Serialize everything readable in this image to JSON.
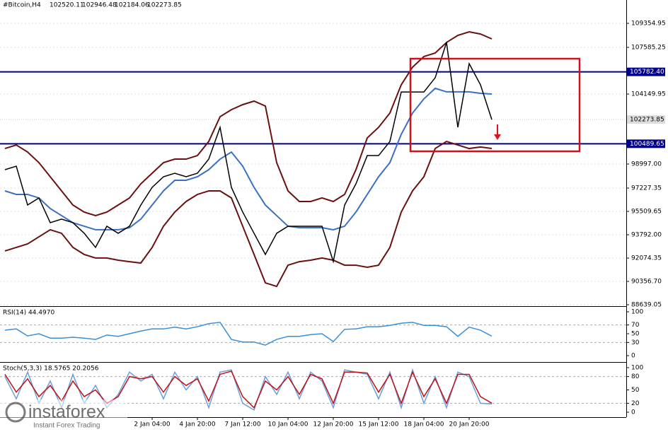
{
  "chart_data": [
    {
      "type": "line",
      "title": "#Bitcoin,H4",
      "ohlc": [
        102520.11,
        102946.48,
        102184.06,
        102273.85
      ],
      "last_price": 102273.85,
      "categories": [
        null,
        null,
        null,
        null,
        null,
        null,
        null,
        null,
        null,
        null,
        null,
        null,
        null,
        "2 Jan 04:00",
        null,
        null,
        null,
        "4 Jan 20:00",
        null,
        null,
        null,
        "7 Jan 12:00",
        null,
        null,
        null,
        "10 Jan 04:00",
        null,
        null,
        null,
        "12 Jan 20:00",
        null,
        null,
        null,
        "15 Jan 12:00",
        null,
        null,
        null,
        "18 Jan 04:00",
        null,
        null,
        null,
        "20 Jan 20:00",
        null,
        null
      ],
      "series": [
        {
          "color": "#6b1010",
          "values": [
            100140,
            100400,
            99880,
            99100,
            98060,
            97020,
            95980,
            95460,
            95200,
            95460,
            95980,
            96500,
            97540,
            98320,
            99100,
            99360,
            99360,
            99620,
            100660,
            102480,
            103000,
            103370,
            103630,
            103270,
            99100,
            97020,
            96240,
            96240,
            96500,
            96240,
            96760,
            98580,
            100920,
            101700,
            102750,
            104830,
            106130,
            106910,
            107170,
            107950,
            108470,
            108730,
            108570,
            108210
          ]
        },
        {
          "color": "#6b1010",
          "values": [
            92600,
            92860,
            93120,
            93640,
            94160,
            93900,
            92860,
            92340,
            92080,
            92080,
            91920,
            91810,
            91710,
            92860,
            94420,
            95460,
            96240,
            96760,
            97020,
            97020,
            96500,
            94420,
            92340,
            90250,
            89990,
            91550,
            91810,
            91920,
            92080,
            91920,
            91550,
            91550,
            91400,
            91550,
            92860,
            95460,
            97020,
            98060,
            100140,
            100660,
            100400,
            100140,
            100250,
            100140
          ]
        },
        {
          "color": "#3b6fc4",
          "values": [
            97020,
            96760,
            96760,
            96500,
            95720,
            95200,
            94680,
            94420,
            94160,
            94160,
            94160,
            94310,
            94940,
            95980,
            97020,
            97800,
            97800,
            98060,
            98580,
            99360,
            99880,
            98840,
            97280,
            95980,
            95200,
            94420,
            94310,
            94310,
            94310,
            94160,
            94420,
            95460,
            96760,
            98060,
            99100,
            101180,
            102750,
            103790,
            104570,
            104310,
            104310,
            104310,
            104200,
            104150
          ]
        },
        {
          "color": "#000000",
          "values": [
            98580,
            98840,
            95980,
            96500,
            94680,
            94940,
            94680,
            93900,
            92860,
            94420,
            93900,
            94420,
            95980,
            97280,
            98060,
            98320,
            98060,
            98320,
            99360,
            101700,
            97280,
            95460,
            93900,
            92340,
            93900,
            94420,
            94420,
            94420,
            94420,
            91820,
            95980,
            97540,
            99620,
            99620,
            100660,
            104300,
            104300,
            104300,
            105350,
            107950,
            101700,
            106390,
            104830,
            102270
          ]
        }
      ],
      "levels": [
        {
          "value": 105782.4,
          "label": "105782.40"
        },
        100489.65
      ],
      "ylim": [
        88483,
        111073
      ],
      "yticks": [
        {
          "value": 88639.05,
          "label": "88639.05"
        },
        {
          "value": 90356.7,
          "label": "90356.70"
        },
        {
          "value": 92074.35,
          "label": "92074.35"
        },
        {
          "value": 93792,
          "label": "93792.00"
        },
        {
          "value": 95509.65,
          "label": "95509.65"
        },
        {
          "value": 97227.35,
          "label": "97227.35"
        },
        {
          "value": 98997,
          "label": "98997.00"
        },
        104149.95,
        107585.25,
        109354.95
      ],
      "grid": true
    },
    {
      "type": "line",
      "title": "RSI(14) 44.4970",
      "series": [
        {
          "color": "#3a8fd6",
          "values": [
            58,
            61,
            45,
            50,
            40,
            40,
            42,
            40,
            37,
            47,
            44,
            50,
            56,
            61,
            61,
            65,
            61,
            66,
            73,
            76,
            37,
            31,
            31,
            24,
            37,
            44,
            44,
            48,
            50,
            32,
            60,
            61,
            66,
            66,
            69,
            74,
            76,
            69,
            69,
            66,
            44,
            65,
            58,
            44.497
          ]
        }
      ],
      "levels": [
        30,
        70
      ],
      "ylim": [
        0,
        100
      ],
      "yticks": [
        0,
        30,
        50,
        70,
        100
      ]
    },
    {
      "type": "line",
      "title": "Stoch(5,3,3) 18.5765 20.2056",
      "series": [
        {
          "color": "#6a9fd8",
          "values": [
            80,
            30,
            90,
            20,
            70,
            10,
            85,
            20,
            60,
            10,
            40,
            90,
            70,
            85,
            30,
            90,
            50,
            80,
            10,
            90,
            95,
            20,
            5,
            80,
            40,
            90,
            30,
            90,
            70,
            10,
            95,
            90,
            85,
            30,
            90,
            10,
            95,
            20,
            80,
            10,
            90,
            80,
            20,
            18.5765
          ]
        },
        {
          "color": "#c0101a",
          "values": [
            85,
            45,
            75,
            35,
            60,
            25,
            70,
            35,
            50,
            20,
            35,
            80,
            75,
            80,
            45,
            80,
            60,
            75,
            25,
            85,
            92,
            35,
            10,
            70,
            50,
            80,
            40,
            85,
            75,
            20,
            90,
            90,
            88,
            45,
            85,
            20,
            90,
            35,
            75,
            20,
            85,
            85,
            35,
            20.2056
          ]
        }
      ],
      "levels": [
        20,
        80
      ],
      "ylim": [
        0,
        100
      ],
      "yticks": [
        0,
        20,
        50,
        80,
        100
      ]
    }
  ],
  "watermark": {
    "brand": "instaforex",
    "tagline": "Instant Forex Trading"
  }
}
